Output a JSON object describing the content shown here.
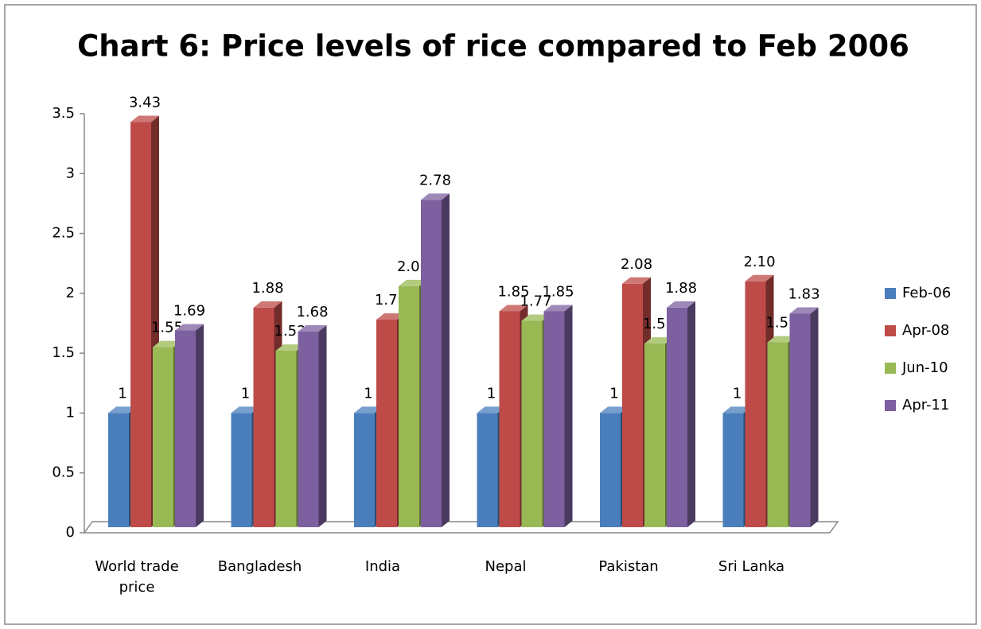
{
  "chart_data": {
    "type": "bar3d",
    "title": "Chart 6: Price levels of rice compared to Feb 2006",
    "categories": [
      "World trade price",
      "Bangladesh",
      "India",
      "Nepal",
      "Pakistan",
      "Sri Lanka"
    ],
    "series": [
      {
        "name": "Feb-06",
        "color": "#4a7ebb",
        "values": [
          1,
          1,
          1,
          1,
          1,
          1
        ]
      },
      {
        "name": "Apr-08",
        "color": "#be4b48",
        "values": [
          3.43,
          1.88,
          1.78,
          1.85,
          2.08,
          2.1
        ],
        "value_labels": [
          "3.43",
          "1.88",
          "1.78",
          "1.85",
          "2.08",
          "2.10"
        ]
      },
      {
        "name": "Jun-10",
        "color": "#98b954",
        "values": [
          1.55,
          1.52,
          2.06,
          1.77,
          1.58,
          1.59
        ]
      },
      {
        "name": "Apr-11",
        "color": "#7d60a0",
        "values": [
          1.69,
          1.68,
          2.78,
          1.85,
          1.88,
          1.83
        ]
      }
    ],
    "ylim": [
      0,
      3.5
    ],
    "yticks": [
      0,
      0.5,
      1,
      1.5,
      2,
      2.5,
      3,
      3.5
    ],
    "grid": false,
    "legend": "right"
  }
}
